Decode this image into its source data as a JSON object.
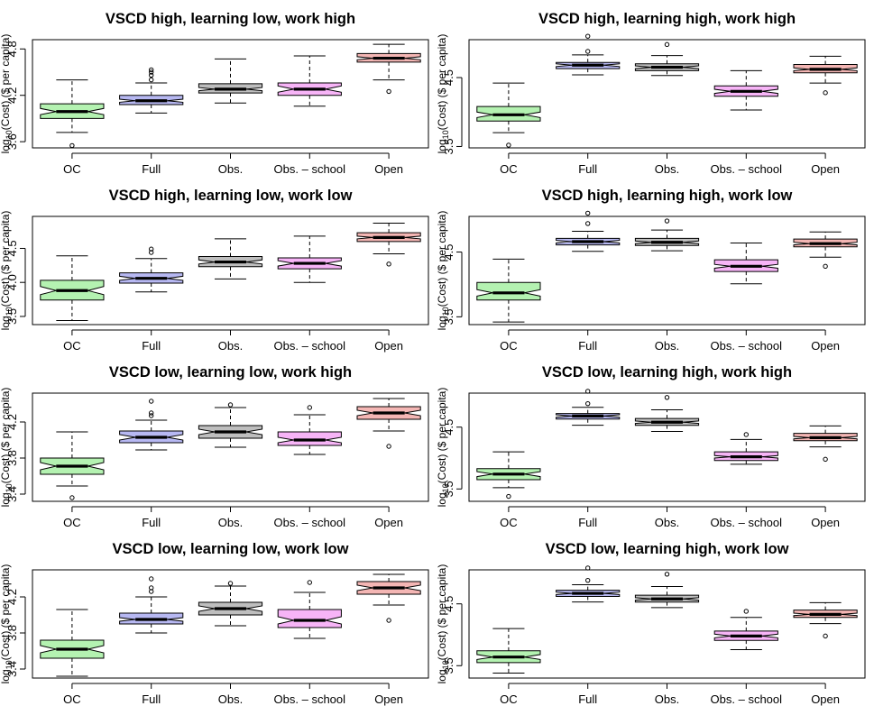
{
  "figure": {
    "background": "#ffffff",
    "group_colors": [
      "#b4f2b1",
      "#b7b8f2",
      "#bebebe",
      "#f7b4f7",
      "#f4b6b4"
    ],
    "ylabel_prefix": "log",
    "ylabel_subscript": "10",
    "ylabel_suffix": "(Cost) ($ per capita)"
  },
  "chart_data": [
    {
      "type": "boxplot",
      "title": "VSCD high, learning low, work high",
      "categories": [
        "OC",
        "Full",
        "Obs.",
        "Obs. – school",
        "Open"
      ],
      "ylim": [
        3.52,
        4.92
      ],
      "yticks": [
        "3.6",
        "4.2",
        "4.8"
      ],
      "boxes": [
        {
          "whisker_low": 3.72,
          "q1": 3.9,
          "notch_low": 3.95,
          "median": 3.99,
          "notch_high": 4.03,
          "q3": 4.09,
          "whisker_high": 4.4,
          "outliers": [
            3.55
          ]
        },
        {
          "whisker_low": 3.97,
          "q1": 4.08,
          "notch_low": 4.11,
          "median": 4.13,
          "notch_high": 4.15,
          "q3": 4.2,
          "whisker_high": 4.36,
          "outliers": [
            4.4,
            4.46,
            4.5,
            4.53
          ]
        },
        {
          "whisker_low": 4.1,
          "q1": 4.23,
          "notch_low": 4.26,
          "median": 4.28,
          "notch_high": 4.3,
          "q3": 4.35,
          "whisker_high": 4.67,
          "outliers": []
        },
        {
          "whisker_low": 4.06,
          "q1": 4.2,
          "notch_low": 4.24,
          "median": 4.28,
          "notch_high": 4.32,
          "q3": 4.36,
          "whisker_high": 4.71,
          "outliers": []
        },
        {
          "whisker_low": 4.4,
          "q1": 4.63,
          "notch_low": 4.66,
          "median": 4.68,
          "notch_high": 4.7,
          "q3": 4.74,
          "whisker_high": 4.86,
          "outliers": [
            4.25
          ]
        }
      ]
    },
    {
      "type": "boxplot",
      "title": "VSCD high, learning high, work high",
      "categories": [
        "OC",
        "Full",
        "Obs.",
        "Obs. – school",
        "Open"
      ],
      "ylim": [
        3.48,
        5.05
      ],
      "yticks": [
        "3.5",
        "4.5"
      ],
      "boxes": [
        {
          "whisker_low": 3.7,
          "q1": 3.87,
          "notch_low": 3.92,
          "median": 3.96,
          "notch_high": 4.0,
          "q3": 4.08,
          "whisker_high": 4.42,
          "outliers": [
            3.52
          ]
        },
        {
          "whisker_low": 4.54,
          "q1": 4.63,
          "notch_low": 4.66,
          "median": 4.68,
          "notch_high": 4.7,
          "q3": 4.72,
          "whisker_high": 4.83,
          "outliers": [
            4.88,
            5.1
          ]
        },
        {
          "whisker_low": 4.53,
          "q1": 4.6,
          "notch_low": 4.63,
          "median": 4.65,
          "notch_high": 4.67,
          "q3": 4.7,
          "whisker_high": 4.82,
          "outliers": [
            4.98
          ]
        },
        {
          "whisker_low": 4.03,
          "q1": 4.23,
          "notch_low": 4.27,
          "median": 4.3,
          "notch_high": 4.33,
          "q3": 4.38,
          "whisker_high": 4.6,
          "outliers": []
        },
        {
          "whisker_low": 4.42,
          "q1": 4.57,
          "notch_low": 4.6,
          "median": 4.62,
          "notch_high": 4.64,
          "q3": 4.69,
          "whisker_high": 4.81,
          "outliers": [
            4.28
          ]
        }
      ]
    },
    {
      "type": "boxplot",
      "title": "VSCD high, learning low, work low",
      "categories": [
        "OC",
        "Full",
        "Obs.",
        "Obs. – school",
        "Open"
      ],
      "ylim": [
        3.38,
        4.97
      ],
      "yticks": [
        "3.5",
        "4.0",
        "4.5"
      ],
      "boxes": [
        {
          "whisker_low": 3.44,
          "q1": 3.74,
          "notch_low": 3.82,
          "median": 3.88,
          "notch_high": 3.94,
          "q3": 4.03,
          "whisker_high": 4.39,
          "outliers": []
        },
        {
          "whisker_low": 3.86,
          "q1": 3.99,
          "notch_low": 4.03,
          "median": 4.06,
          "notch_high": 4.09,
          "q3": 4.14,
          "whisker_high": 4.35,
          "outliers": [
            4.44,
            4.49
          ]
        },
        {
          "whisker_low": 4.05,
          "q1": 4.23,
          "notch_low": 4.27,
          "median": 4.3,
          "notch_high": 4.33,
          "q3": 4.38,
          "whisker_high": 4.64,
          "outliers": []
        },
        {
          "whisker_low": 4.0,
          "q1": 4.2,
          "notch_low": 4.24,
          "median": 4.28,
          "notch_high": 4.32,
          "q3": 4.36,
          "whisker_high": 4.68,
          "outliers": []
        },
        {
          "whisker_low": 4.42,
          "q1": 4.6,
          "notch_low": 4.64,
          "median": 4.66,
          "notch_high": 4.68,
          "q3": 4.73,
          "whisker_high": 4.87,
          "outliers": [
            4.27
          ]
        }
      ]
    },
    {
      "type": "boxplot",
      "title": "VSCD high, learning high, work low",
      "categories": [
        "OC",
        "Full",
        "Obs.",
        "Obs. – school",
        "Open"
      ],
      "ylim": [
        3.38,
        5.05
      ],
      "yticks": [
        "3.5",
        "4.5"
      ],
      "boxes": [
        {
          "whisker_low": 3.42,
          "q1": 3.76,
          "notch_low": 3.82,
          "median": 3.87,
          "notch_high": 3.92,
          "q3": 4.03,
          "whisker_high": 4.39,
          "outliers": []
        },
        {
          "whisker_low": 4.51,
          "q1": 4.61,
          "notch_low": 4.64,
          "median": 4.66,
          "notch_high": 4.68,
          "q3": 4.71,
          "whisker_high": 4.82,
          "outliers": [
            4.94,
            5.1
          ]
        },
        {
          "whisker_low": 4.52,
          "q1": 4.6,
          "notch_low": 4.63,
          "median": 4.65,
          "notch_high": 4.67,
          "q3": 4.71,
          "whisker_high": 4.84,
          "outliers": [
            4.98
          ]
        },
        {
          "whisker_low": 4.01,
          "q1": 4.2,
          "notch_low": 4.25,
          "median": 4.28,
          "notch_high": 4.31,
          "q3": 4.38,
          "whisker_high": 4.64,
          "outliers": []
        },
        {
          "whisker_low": 4.42,
          "q1": 4.58,
          "notch_low": 4.61,
          "median": 4.63,
          "notch_high": 4.65,
          "q3": 4.7,
          "whisker_high": 4.81,
          "outliers": [
            4.28
          ]
        }
      ]
    },
    {
      "type": "boxplot",
      "title": "VSCD low, learning low, work high",
      "categories": [
        "OC",
        "Full",
        "Obs.",
        "Obs. – school",
        "Open"
      ],
      "ylim": [
        3.32,
        4.52
      ],
      "yticks": [
        "3.4",
        "3.8",
        "4.2"
      ],
      "boxes": [
        {
          "whisker_low": 3.49,
          "q1": 3.62,
          "notch_low": 3.67,
          "median": 3.71,
          "notch_high": 3.75,
          "q3": 3.8,
          "whisker_high": 4.09,
          "outliers": [
            3.36
          ]
        },
        {
          "whisker_low": 3.89,
          "q1": 3.97,
          "notch_low": 4.0,
          "median": 4.03,
          "notch_high": 4.06,
          "q3": 4.1,
          "whisker_high": 4.22,
          "outliers": [
            4.27,
            4.3,
            4.43
          ]
        },
        {
          "whisker_low": 3.92,
          "q1": 4.02,
          "notch_low": 4.06,
          "median": 4.09,
          "notch_high": 4.12,
          "q3": 4.16,
          "whisker_high": 4.36,
          "outliers": [
            4.39
          ]
        },
        {
          "whisker_low": 3.84,
          "q1": 3.94,
          "notch_low": 3.97,
          "median": 4.0,
          "notch_high": 4.03,
          "q3": 4.09,
          "whisker_high": 4.28,
          "outliers": [
            4.36
          ]
        },
        {
          "whisker_low": 4.1,
          "q1": 4.23,
          "notch_low": 4.27,
          "median": 4.3,
          "notch_high": 4.33,
          "q3": 4.37,
          "whisker_high": 4.46,
          "outliers": [
            3.93
          ]
        }
      ]
    },
    {
      "type": "boxplot",
      "title": "VSCD low, learning high, work high",
      "categories": [
        "OC",
        "Full",
        "Obs.",
        "Obs. – school",
        "Open"
      ],
      "ylim": [
        3.3,
        5.05
      ],
      "yticks": [
        "3.5",
        "4.5"
      ],
      "boxes": [
        {
          "whisker_low": 3.52,
          "q1": 3.65,
          "notch_low": 3.7,
          "median": 3.74,
          "notch_high": 3.78,
          "q3": 3.83,
          "whisker_high": 4.1,
          "outliers": [
            3.38
          ]
        },
        {
          "whisker_low": 4.53,
          "q1": 4.63,
          "notch_low": 4.66,
          "median": 4.68,
          "notch_high": 4.7,
          "q3": 4.72,
          "whisker_high": 4.82,
          "outliers": [
            4.88,
            5.08
          ]
        },
        {
          "whisker_low": 4.43,
          "q1": 4.53,
          "notch_low": 4.56,
          "median": 4.58,
          "notch_high": 4.6,
          "q3": 4.64,
          "whisker_high": 4.78,
          "outliers": [
            4.98
          ]
        },
        {
          "whisker_low": 3.9,
          "q1": 3.96,
          "notch_low": 4.0,
          "median": 4.02,
          "notch_high": 4.04,
          "q3": 4.1,
          "whisker_high": 4.3,
          "outliers": [
            4.38
          ]
        },
        {
          "whisker_low": 4.18,
          "q1": 4.28,
          "notch_low": 4.31,
          "median": 4.33,
          "notch_high": 4.35,
          "q3": 4.4,
          "whisker_high": 4.52,
          "outliers": [
            3.98
          ]
        }
      ]
    },
    {
      "type": "boxplot",
      "title": "VSCD low, learning low, work low",
      "categories": [
        "OC",
        "Full",
        "Obs.",
        "Obs. – school",
        "Open"
      ],
      "ylim": [
        3.3,
        4.5
      ],
      "yticks": [
        "3.4",
        "3.8",
        "4.2"
      ],
      "boxes": [
        {
          "whisker_low": 3.32,
          "q1": 3.52,
          "notch_low": 3.58,
          "median": 3.62,
          "notch_high": 3.66,
          "q3": 3.72,
          "whisker_high": 4.06,
          "outliers": []
        },
        {
          "whisker_low": 3.8,
          "q1": 3.9,
          "notch_low": 3.93,
          "median": 3.95,
          "notch_high": 3.97,
          "q3": 4.02,
          "whisker_high": 4.2,
          "outliers": [
            4.26,
            4.3,
            4.4
          ]
        },
        {
          "whisker_low": 3.88,
          "q1": 4.0,
          "notch_low": 4.04,
          "median": 4.07,
          "notch_high": 4.1,
          "q3": 4.14,
          "whisker_high": 4.32,
          "outliers": [
            4.35
          ]
        },
        {
          "whisker_low": 3.74,
          "q1": 3.86,
          "notch_low": 3.9,
          "median": 3.94,
          "notch_high": 3.98,
          "q3": 4.06,
          "whisker_high": 4.25,
          "outliers": [
            4.36
          ]
        },
        {
          "whisker_low": 4.11,
          "q1": 4.23,
          "notch_low": 4.27,
          "median": 4.3,
          "notch_high": 4.33,
          "q3": 4.37,
          "whisker_high": 4.45,
          "outliers": [
            3.94
          ]
        }
      ]
    },
    {
      "type": "boxplot",
      "title": "VSCD low, learning high, work low",
      "categories": [
        "OC",
        "Full",
        "Obs.",
        "Obs. – school",
        "Open"
      ],
      "ylim": [
        3.3,
        5.05
      ],
      "yticks": [
        "3.5",
        "4.5"
      ],
      "boxes": [
        {
          "whisker_low": 3.38,
          "q1": 3.55,
          "notch_low": 3.6,
          "median": 3.64,
          "notch_high": 3.68,
          "q3": 3.74,
          "whisker_high": 4.1,
          "outliers": []
        },
        {
          "whisker_low": 4.53,
          "q1": 4.62,
          "notch_low": 4.65,
          "median": 4.67,
          "notch_high": 4.69,
          "q3": 4.72,
          "whisker_high": 4.81,
          "outliers": [
            4.88,
            5.08
          ]
        },
        {
          "whisker_low": 4.44,
          "q1": 4.53,
          "notch_low": 4.56,
          "median": 4.58,
          "notch_high": 4.6,
          "q3": 4.64,
          "whisker_high": 4.78,
          "outliers": [
            4.98
          ]
        },
        {
          "whisker_low": 3.76,
          "q1": 3.91,
          "notch_low": 3.95,
          "median": 3.98,
          "notch_high": 4.01,
          "q3": 4.06,
          "whisker_high": 4.28,
          "outliers": [
            4.38
          ]
        },
        {
          "whisker_low": 4.18,
          "q1": 4.28,
          "notch_low": 4.31,
          "median": 4.33,
          "notch_high": 4.35,
          "q3": 4.4,
          "whisker_high": 4.52,
          "outliers": [
            3.98
          ]
        }
      ]
    }
  ]
}
